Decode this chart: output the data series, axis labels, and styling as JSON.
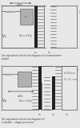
{
  "bg_color": "#e8e8e8",
  "line_color": "#555555",
  "dark_color": "#222222",
  "gray_color": "#b0b0b0",
  "text_color": "#444444",
  "caption_color": "#333333",
  "title_a_line1": "(a) equivalent electrical diagram of a transformer",
  "title_a_line2": "simple.",
  "title_b_line1": "(b) equivalent electrical diagram of",
  "title_b_line2": "a double - stage processor"
}
